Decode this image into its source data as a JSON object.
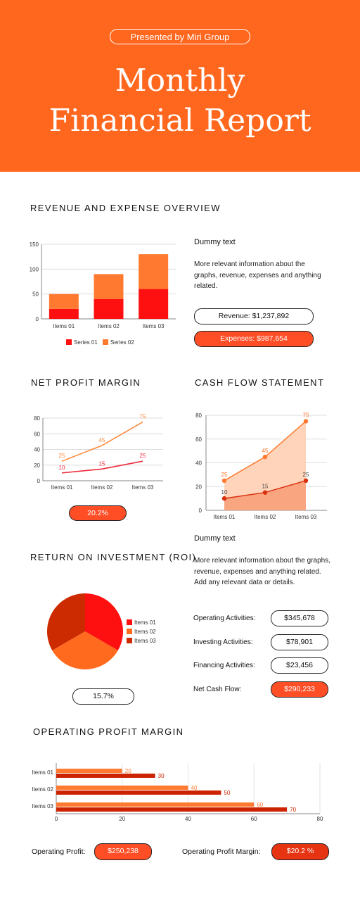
{
  "header": {
    "presented": "Presented by Miri Group",
    "title_line1": "Monthly",
    "title_line2": "Financial Report"
  },
  "sections": {
    "revenue": "REVENUE AND EXPENSE OVERVIEW",
    "net_profit": "NET PROFIT MARGIN",
    "cash_flow": "CASH FLOW STATEMENT",
    "roi": "RETURN ON INVESTMENT (ROI)",
    "op_profit": "OPERATING PROFIT MARGIN"
  },
  "revenue_info": {
    "heading": "Dummy text",
    "body": "More relevant information about the graphs, revenue, expenses and anything related.",
    "revenue": "Revenue: $1,237,892",
    "expenses": "Expenses: $987,654"
  },
  "net_profit_value": "20.2%",
  "cash_info": {
    "heading": "Dummy text",
    "body": "More relevant information about the graphs, revenue, expenses and anything related. Add any relevant data or details.",
    "rows": [
      {
        "label": "Operating Activities:",
        "value": "$345,678"
      },
      {
        "label": "Investing Activities:",
        "value": "$78,901"
      },
      {
        "label": "Financing Activities:",
        "value": "$23,456"
      },
      {
        "label": "Net Cash Flow:",
        "value": "$290,233"
      }
    ]
  },
  "roi_value": "15.7%",
  "footer": {
    "op_profit_label": "Operating Profit:",
    "op_profit_value": "$250,238",
    "op_margin_label": "Operating Profit Margin:",
    "op_margin_value": "$20.2 %"
  },
  "colors": {
    "orange": "#ff671f",
    "red": "#ff1010",
    "light_orange": "#ff7a30",
    "dark_red": "#cc2200"
  },
  "chart_data": [
    {
      "id": "revenue-expense",
      "type": "bar",
      "stacked": true,
      "categories": [
        "Items 01",
        "Items 02",
        "Items 03"
      ],
      "series": [
        {
          "name": "Series 01",
          "values": [
            20,
            40,
            60
          ],
          "color": "#ff1010"
        },
        {
          "name": "Series 02",
          "values": [
            30,
            50,
            70
          ],
          "color": "#ff7a30"
        }
      ],
      "ylim": [
        0,
        150
      ],
      "yticks": [
        0,
        50,
        100,
        150
      ],
      "legend": "bottom"
    },
    {
      "id": "net-profit",
      "type": "line",
      "categories": [
        "Items 01",
        "Items 02",
        "Items 03"
      ],
      "series": [
        {
          "values": [
            25,
            45,
            75
          ],
          "color": "#ff8a3d"
        },
        {
          "values": [
            10,
            15,
            25
          ],
          "color": "#ee2a3a"
        }
      ],
      "ylim": [
        0,
        80
      ],
      "yticks": [
        0,
        20,
        40,
        60,
        80
      ]
    },
    {
      "id": "cash-flow",
      "type": "area",
      "categories": [
        "Items 01",
        "Items 02",
        "Items 03"
      ],
      "series": [
        {
          "values": [
            25,
            45,
            75
          ],
          "color": "#ff7a30"
        },
        {
          "values": [
            10,
            15,
            25
          ],
          "color": "#d9300f"
        }
      ],
      "ylim": [
        0,
        80
      ],
      "yticks": [
        0,
        20,
        40,
        60,
        80
      ]
    },
    {
      "id": "roi",
      "type": "pie",
      "labels": [
        "Items 01",
        "Items 02",
        "Items 03"
      ],
      "values": [
        33.3,
        33.3,
        33.3
      ],
      "colors": [
        "#ff1010",
        "#ff6a1f",
        "#cc2a00"
      ],
      "legend": "right"
    },
    {
      "id": "op-profit",
      "type": "bar",
      "orientation": "horizontal",
      "categories": [
        "Items 01",
        "Items 02",
        "Items 03"
      ],
      "series": [
        {
          "values": [
            20,
            40,
            60
          ],
          "color": "#ff7a30"
        },
        {
          "values": [
            30,
            50,
            70
          ],
          "color": "#cc2200"
        }
      ],
      "xlim": [
        0,
        80
      ],
      "xticks": [
        0,
        20,
        40,
        60,
        80
      ]
    }
  ]
}
